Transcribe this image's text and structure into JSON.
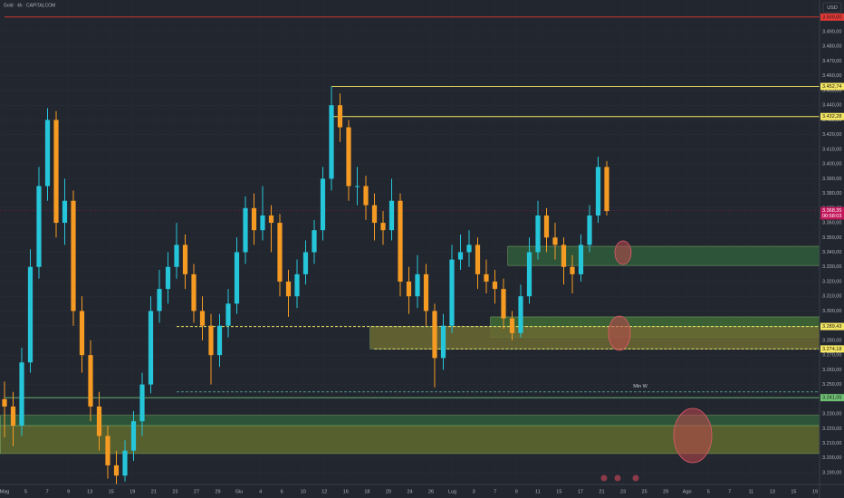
{
  "chart_data": {
    "type": "candlestick",
    "title": "Gold · 4h · CAPITALCOM",
    "currency": "USD",
    "ylim": [
      3182,
      3511.6
    ],
    "yticks": [
      {
        "value": 3190,
        "label": "3.190,00"
      },
      {
        "value": 3200,
        "label": "3.200,00"
      },
      {
        "value": 3210,
        "label": "3.210,00"
      },
      {
        "value": 3220,
        "label": "3.220,00"
      },
      {
        "value": 3230,
        "label": "3.230,00"
      },
      {
        "value": 3240,
        "label": "3.240,00"
      },
      {
        "value": 3250,
        "label": "3.250,00"
      },
      {
        "value": 3260,
        "label": "3.260,00"
      },
      {
        "value": 3270,
        "label": "3.270,00"
      },
      {
        "value": 3280,
        "label": "3.280,00"
      },
      {
        "value": 3290,
        "label": "3.290,00"
      },
      {
        "value": 3300,
        "label": "3.300,00"
      },
      {
        "value": 3310,
        "label": "3.310,00"
      },
      {
        "value": 3320,
        "label": "3.320,00"
      },
      {
        "value": 3330,
        "label": "3.330,00"
      },
      {
        "value": 3340,
        "label": "3.340,00"
      },
      {
        "value": 3350,
        "label": "3.350,00"
      },
      {
        "value": 3360,
        "label": "3.360,00"
      },
      {
        "value": 3370,
        "label": "3.370,00"
      },
      {
        "value": 3380,
        "label": "3.380,00"
      },
      {
        "value": 3390,
        "label": "3.390,00"
      },
      {
        "value": 3400,
        "label": "3.400,00"
      },
      {
        "value": 3410,
        "label": "3.410,00"
      },
      {
        "value": 3420,
        "label": "3.420,00"
      },
      {
        "value": 3430,
        "label": "3.430,00"
      },
      {
        "value": 3440,
        "label": "3.440,00"
      },
      {
        "value": 3450,
        "label": "3.450,00"
      },
      {
        "value": 3460,
        "label": "3.460,00"
      },
      {
        "value": 3470,
        "label": "3.470,00"
      },
      {
        "value": 3480,
        "label": "3.480,00"
      },
      {
        "value": 3490,
        "label": "3.490,00"
      }
    ],
    "x_labels": [
      "Mag",
      "5",
      "7",
      "9",
      "13",
      "15",
      "19",
      "21",
      "23",
      "27",
      "29",
      "Giu",
      "4",
      "6",
      "10",
      "12",
      "16",
      "18",
      "20",
      "24",
      "26",
      "Lug",
      "3",
      "7",
      "9",
      "11",
      "15",
      "17",
      "21",
      "23",
      "25",
      "29",
      "Ago",
      "5",
      "7",
      "11",
      "13",
      "15",
      "19"
    ],
    "up_color": "#26c6da",
    "down_color": "#f59b23",
    "open": [
      3240,
      3235,
      3222,
      3265,
      3330,
      3385,
      3430,
      3360,
      3375,
      3300,
      3270,
      3235,
      3215,
      3195,
      3188,
      3205,
      3225,
      3250,
      3300,
      3315,
      3330,
      3345,
      3325,
      3300,
      3290,
      3270,
      3290,
      3305,
      3340,
      3370,
      3355,
      3365,
      3360,
      3320,
      3310,
      3325,
      3340,
      3355,
      3390,
      3440,
      3425,
      3385,
      3385,
      3372,
      3360,
      3355,
      3375,
      3320,
      3310,
      3325,
      3300,
      3268,
      3290,
      3335,
      3340,
      3345,
      3325,
      3320,
      3315,
      3295,
      3285,
      3310,
      3340,
      3365,
      3350,
      3345,
      3330,
      3325,
      3345,
      3365,
      3398
    ],
    "high": [
      3252,
      3245,
      3275,
      3342,
      3398,
      3438,
      3436,
      3390,
      3382,
      3310,
      3280,
      3245,
      3222,
      3205,
      3212,
      3232,
      3258,
      3310,
      3328,
      3340,
      3360,
      3352,
      3332,
      3310,
      3298,
      3298,
      3315,
      3350,
      3378,
      3380,
      3385,
      3372,
      3366,
      3328,
      3335,
      3348,
      3362,
      3398,
      3452.74,
      3448,
      3430,
      3398,
      3392,
      3380,
      3368,
      3390,
      3380,
      3330,
      3338,
      3332,
      3305,
      3298,
      3345,
      3352,
      3355,
      3350,
      3335,
      3328,
      3322,
      3300,
      3318,
      3350,
      3375,
      3370,
      3360,
      3350,
      3338,
      3352,
      3372,
      3405,
      3402
    ],
    "low": [
      3214,
      3208,
      3215,
      3258,
      3322,
      3375,
      3350,
      3345,
      3290,
      3258,
      3225,
      3205,
      3186,
      3182,
      3184,
      3198,
      3215,
      3244,
      3292,
      3305,
      3322,
      3315,
      3292,
      3280,
      3250,
      3262,
      3282,
      3298,
      3332,
      3345,
      3348,
      3340,
      3310,
      3296,
      3302,
      3318,
      3332,
      3348,
      3382,
      3415,
      3375,
      3372,
      3362,
      3348,
      3345,
      3348,
      3310,
      3298,
      3302,
      3290,
      3248,
      3260,
      3285,
      3328,
      3330,
      3315,
      3312,
      3305,
      3288,
      3280,
      3282,
      3305,
      3335,
      3340,
      3335,
      3318,
      3312,
      3320,
      3340,
      3360,
      3365
    ],
    "close": [
      3235,
      3222,
      3265,
      3330,
      3385,
      3430,
      3360,
      3375,
      3300,
      3270,
      3235,
      3215,
      3195,
      3188,
      3205,
      3225,
      3250,
      3300,
      3315,
      3330,
      3345,
      3325,
      3300,
      3290,
      3270,
      3290,
      3305,
      3340,
      3370,
      3355,
      3365,
      3360,
      3320,
      3310,
      3325,
      3340,
      3355,
      3390,
      3440,
      3425,
      3385,
      3385,
      3372,
      3360,
      3355,
      3375,
      3320,
      3310,
      3325,
      3300,
      3268,
      3290,
      3335,
      3340,
      3345,
      3325,
      3320,
      3315,
      3295,
      3285,
      3310,
      3340,
      3365,
      3350,
      3345,
      3330,
      3325,
      3345,
      3365,
      3398,
      3368
    ],
    "zones": [
      {
        "from": 3331,
        "to": 3344,
        "start": 59,
        "color": "#2f5d3a"
      },
      {
        "from": 3282,
        "to": 3296,
        "start": 57,
        "color": "#3f6b35"
      },
      {
        "from": 3274.18,
        "to": 3289.43,
        "start": 43,
        "color": "#6b6a32"
      },
      {
        "from": 3222,
        "to": 3229,
        "start": 0,
        "color": "#2f5d3a"
      },
      {
        "from": 3203,
        "to": 3222,
        "start": 0,
        "color": "#5e6b2e"
      }
    ],
    "levels": [
      {
        "value": 3500,
        "label": "3.500,00",
        "color": "#e53935",
        "style": "solid",
        "start": 0
      },
      {
        "value": 3452.74,
        "label": "3.452,74",
        "color": "#f5e663",
        "style": "solid",
        "start": 38
      },
      {
        "value": 3432.28,
        "label": "3.432,28",
        "color": "#f5e663",
        "style": "solid",
        "start": 38
      },
      {
        "value": 3289.43,
        "label": "3.289,43",
        "color": "#f5e663",
        "style": "dashed",
        "start": 20
      },
      {
        "value": 3274.18,
        "label": "3.274,18",
        "color": "#f5e663",
        "style": "dashed",
        "start": 43
      },
      {
        "value": 3241.05,
        "label": "3.241,05",
        "color": "#6fbf73",
        "style": "solid",
        "start": 0
      },
      {
        "value": 3245,
        "text": "Min W",
        "color": "#4f8f8f",
        "style": "dashed",
        "start": 20
      }
    ],
    "current": {
      "value": 3368.35,
      "label": "3.368,35",
      "countdown": "00:58:03",
      "color": "#c2185b"
    }
  }
}
